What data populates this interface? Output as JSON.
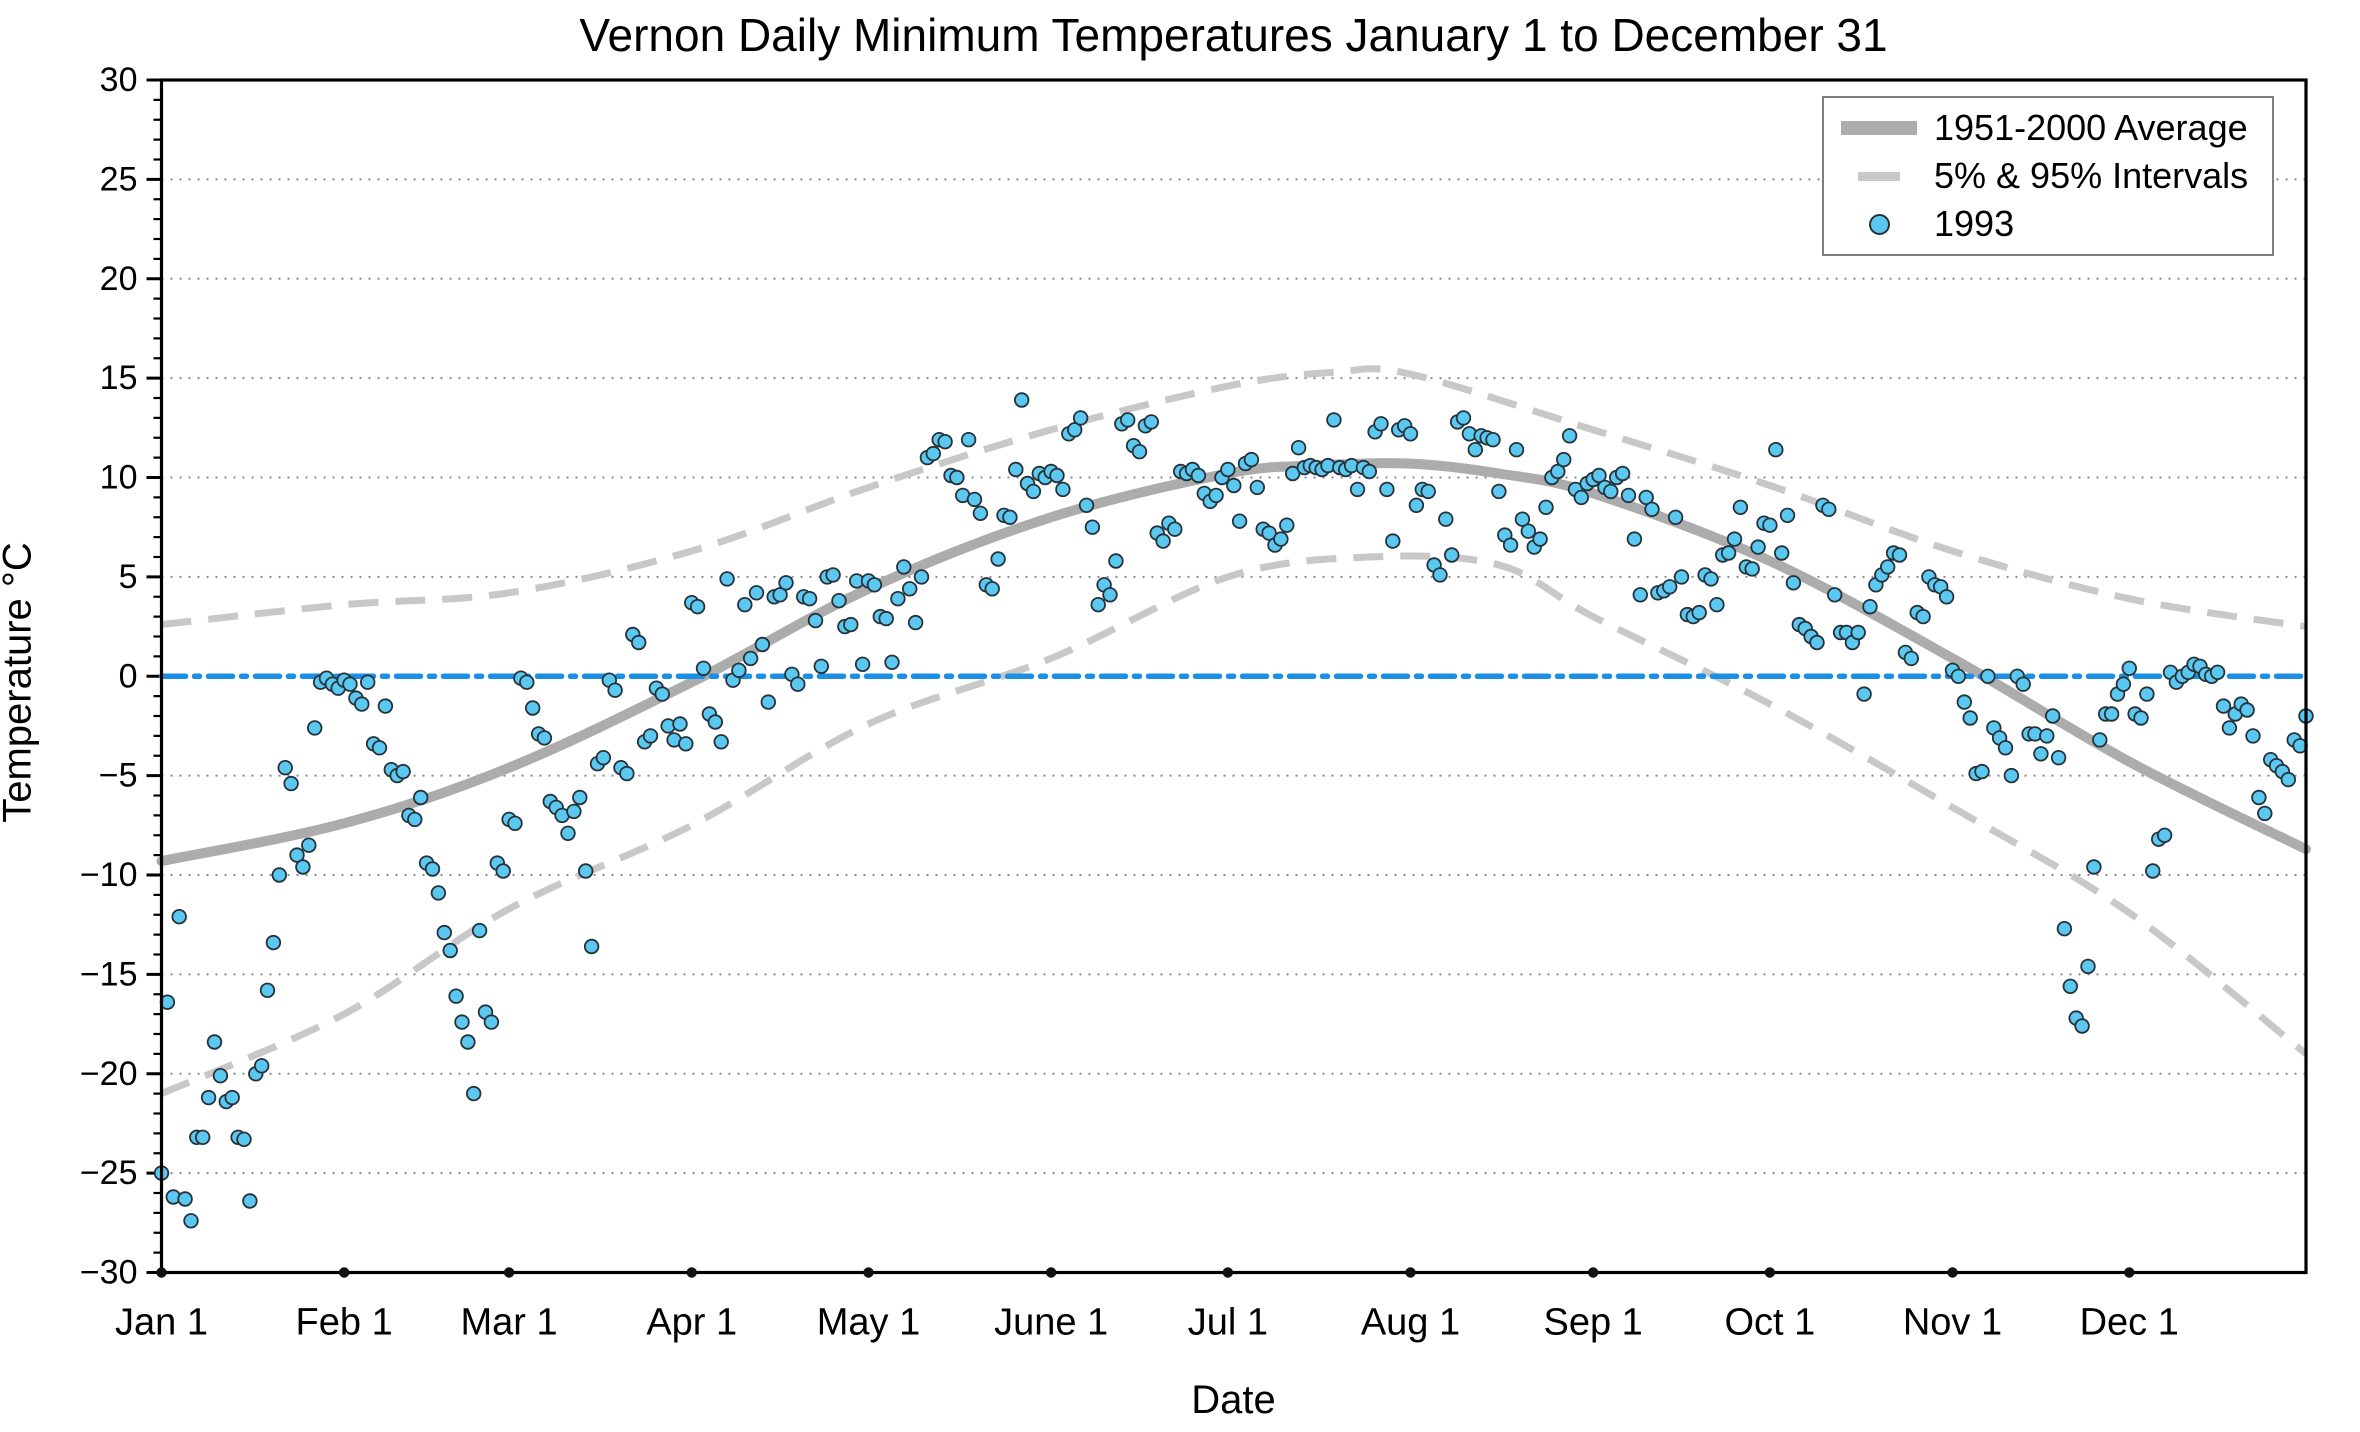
{
  "figure": {
    "title": "Vernon Daily Minimum Temperatures January 1 to December 31",
    "xlabel": "Date",
    "ylabel": "Temperature °C"
  },
  "legend": {
    "position": "upper right",
    "items": [
      {
        "label": "1951-2000 Average",
        "symbol": "thick-gray-line"
      },
      {
        "label": "5% & 95% Intervals",
        "symbol": "gray-dash"
      },
      {
        "label": "1993",
        "symbol": "blue-circle-marker"
      }
    ]
  },
  "chart_data": {
    "type": "scatter",
    "title": "Vernon Daily Minimum Temperatures January 1 to December 31",
    "xlabel": "Date",
    "ylabel": "Temperature °C",
    "ylim": [
      -30,
      30
    ],
    "ytick_step": 5,
    "ytick_labels": [
      "30",
      "25",
      "20",
      "15",
      "10",
      "5",
      "0",
      "−5",
      "−10",
      "−15",
      "−20",
      "−25",
      "−30"
    ],
    "grid": "dotted horizontal lines every 5°C",
    "legend_position": "upper right",
    "days_in_year": 365,
    "xticks": [
      {
        "label": "Jan 1",
        "day": 0
      },
      {
        "label": "Feb 1",
        "day": 31
      },
      {
        "label": "Mar 1",
        "day": 59
      },
      {
        "label": "Apr 1",
        "day": 90
      },
      {
        "label": "May 1",
        "day": 120
      },
      {
        "label": "June 1",
        "day": 151
      },
      {
        "label": "Jul 1",
        "day": 181
      },
      {
        "label": "Aug 1",
        "day": 212
      },
      {
        "label": "Sep 1",
        "day": 243
      },
      {
        "label": "Oct 1",
        "day": 273
      },
      {
        "label": "Nov 1",
        "day": 304
      },
      {
        "label": "Dec 1",
        "day": 334
      }
    ],
    "reference_line": {
      "name": "0 °C freezing line",
      "value": 0,
      "style": "dash-dot",
      "color": "#1b8fe4"
    },
    "colors": {
      "average_line": "#acacac",
      "interval_line": "#c8c8c8",
      "marker_fill": "#5bc8f2",
      "marker_edge": "#263238",
      "reference_line": "#1b8fe4",
      "grid_dots": "#8a8a8a",
      "frame": "#000000"
    },
    "series": [
      {
        "name": "1951-2000 Average",
        "type": "line",
        "style": "thick solid gray",
        "points": [
          [
            0,
            -9.3
          ],
          [
            31,
            -7.4
          ],
          [
            59,
            -4.6
          ],
          [
            90,
            -0.3
          ],
          [
            120,
            4.4
          ],
          [
            151,
            8.0
          ],
          [
            181,
            10.2
          ],
          [
            196,
            10.6
          ],
          [
            212,
            10.7
          ],
          [
            227,
            10.2
          ],
          [
            243,
            9.2
          ],
          [
            273,
            5.8
          ],
          [
            304,
            0.9
          ],
          [
            334,
            -4.3
          ],
          [
            364,
            -8.7
          ]
        ]
      },
      {
        "name": "95% Interval",
        "type": "line",
        "style": "dashed gray",
        "points": [
          [
            0,
            2.6
          ],
          [
            31,
            3.6
          ],
          [
            59,
            4.2
          ],
          [
            90,
            6.3
          ],
          [
            120,
            9.5
          ],
          [
            151,
            12.4
          ],
          [
            181,
            14.6
          ],
          [
            199,
            15.3
          ],
          [
            212,
            15.2
          ],
          [
            243,
            12.4
          ],
          [
            273,
            9.6
          ],
          [
            304,
            6.3
          ],
          [
            334,
            3.9
          ],
          [
            364,
            2.5
          ]
        ]
      },
      {
        "name": "5% Interval",
        "type": "line",
        "style": "dashed gray",
        "points": [
          [
            0,
            -21.0
          ],
          [
            31,
            -17.0
          ],
          [
            59,
            -11.7
          ],
          [
            90,
            -7.5
          ],
          [
            120,
            -2.4
          ],
          [
            151,
            0.9
          ],
          [
            181,
            5.0
          ],
          [
            205,
            6.0
          ],
          [
            227,
            5.6
          ],
          [
            243,
            3.0
          ],
          [
            273,
            -1.4
          ],
          [
            304,
            -6.6
          ],
          [
            334,
            -11.9
          ],
          [
            364,
            -19.0
          ]
        ]
      },
      {
        "name": "1993",
        "type": "scatter",
        "month_start_days": [
          0,
          31,
          59,
          90,
          120,
          151,
          181,
          212,
          243,
          273,
          304,
          334
        ],
        "monthly_values": {
          "Jan": [
            -25.0,
            -16.4,
            -26.2,
            -12.1,
            -26.3,
            -27.4,
            -23.2,
            -23.2,
            -21.2,
            -18.4,
            -20.1,
            -21.4,
            -21.2,
            -23.2,
            -23.3,
            -26.4,
            -20.0,
            -19.6,
            -15.8,
            -13.4,
            -10.0,
            -4.6,
            -5.4,
            -9.0,
            -9.6,
            -8.5,
            -2.6,
            -0.3,
            -0.1,
            -0.4,
            -0.6
          ],
          "Feb": [
            -0.2,
            -0.4,
            -1.1,
            -1.4,
            -0.3,
            -3.4,
            -3.6,
            -1.5,
            -4.7,
            -5.0,
            -4.8,
            -7.0,
            -7.2,
            -6.1,
            -9.4,
            -9.7,
            -10.9,
            -12.9,
            -13.8,
            -16.1,
            -17.4,
            -18.4,
            -21.0,
            -12.8,
            -16.9,
            -17.4,
            -9.4,
            -9.8
          ],
          "Mar": [
            -7.2,
            -7.4,
            -0.1,
            -0.3,
            -1.6,
            -2.9,
            -3.1,
            -6.3,
            -6.6,
            -7.0,
            -7.9,
            -6.8,
            -6.1,
            -9.8,
            -13.6,
            -4.4,
            -4.1,
            -0.2,
            -0.7,
            -4.6,
            -4.9,
            2.1,
            1.7,
            -3.3,
            -3.0,
            -0.6,
            -0.9,
            -2.5,
            -3.2,
            -2.4,
            -3.4
          ],
          "Apr": [
            3.7,
            3.5,
            0.4,
            -1.9,
            -2.3,
            -3.3,
            4.9,
            -0.2,
            0.3,
            3.6,
            0.9,
            4.2,
            1.6,
            -1.3,
            4.0,
            4.1,
            4.7,
            0.1,
            -0.4,
            4.0,
            3.9,
            2.8,
            0.5,
            5.0,
            5.1,
            3.8,
            2.5,
            2.6,
            4.8,
            0.6
          ],
          "May": [
            4.8,
            4.6,
            3.0,
            2.9,
            0.7,
            3.9,
            5.5,
            4.4,
            2.7,
            5.0,
            11.0,
            11.2,
            11.9,
            11.8,
            10.1,
            10.0,
            9.1,
            11.9,
            8.9,
            8.2,
            4.6,
            4.4,
            5.9,
            8.1,
            8.0,
            10.4,
            13.9,
            9.7,
            9.3,
            10.2,
            10.0
          ],
          "Jun": [
            10.3,
            10.1,
            9.4,
            12.2,
            12.4,
            13.0,
            8.6,
            7.5,
            3.6,
            4.6,
            4.1,
            5.8,
            12.7,
            12.9,
            11.6,
            11.3,
            12.6,
            12.8,
            7.2,
            6.8,
            7.7,
            7.4,
            10.3,
            10.2,
            10.4,
            10.1,
            9.2,
            8.8,
            9.1,
            10.0
          ],
          "Jul": [
            10.4,
            9.6,
            7.8,
            10.7,
            10.9,
            9.5,
            7.4,
            7.2,
            6.6,
            6.9,
            7.6,
            10.2,
            11.5,
            10.5,
            10.6,
            10.5,
            10.4,
            10.6,
            12.9,
            10.5,
            10.4,
            10.6,
            9.4,
            10.5,
            10.3,
            12.3,
            12.7,
            9.4,
            6.8,
            12.4,
            12.6
          ],
          "Aug": [
            12.2,
            8.6,
            9.4,
            9.3,
            5.6,
            5.1,
            7.9,
            6.1,
            12.8,
            13.0,
            12.2,
            11.4,
            12.1,
            12.0,
            11.9,
            9.3,
            7.1,
            6.6,
            11.4,
            7.9,
            7.3,
            6.5,
            6.9,
            8.5,
            10.0,
            10.3,
            10.9,
            12.1,
            9.4,
            9.0,
            9.7
          ],
          "Sep": [
            9.9,
            10.1,
            9.5,
            9.3,
            10.0,
            10.2,
            9.1,
            6.9,
            4.1,
            9.0,
            8.4,
            4.2,
            4.3,
            4.5,
            8.0,
            5.0,
            3.1,
            3.0,
            3.2,
            5.1,
            4.9,
            3.6,
            6.1,
            6.2,
            6.9,
            8.5,
            5.5,
            5.4,
            6.5,
            7.7
          ],
          "Oct": [
            7.6,
            11.4,
            6.2,
            8.1,
            4.7,
            2.6,
            2.4,
            2.0,
            1.7,
            8.6,
            8.4,
            4.1,
            2.2,
            2.2,
            1.7,
            2.2,
            -0.9,
            3.5,
            4.6,
            5.1,
            5.5,
            6.2,
            6.1,
            1.2,
            0.9,
            3.2,
            3.0,
            5.0,
            4.6,
            4.5,
            4.0
          ],
          "Nov": [
            0.3,
            0.0,
            -1.3,
            -2.1,
            -4.9,
            -4.8,
            0.0,
            -2.6,
            -3.1,
            -3.6,
            -5.0,
            0.0,
            -0.4,
            -2.9,
            -2.9,
            -3.9,
            -3.0,
            -2.0,
            -4.1,
            -12.7,
            -15.6,
            -17.2,
            -17.6,
            -14.6,
            -9.6,
            -3.2,
            -1.9,
            -1.9,
            -0.9,
            -0.4
          ],
          "Dec": [
            0.4,
            -1.9,
            -2.1,
            -0.9,
            -9.8,
            -8.2,
            -8.0,
            0.2,
            -0.3,
            0.0,
            0.2,
            0.6,
            0.5,
            0.1,
            0.0,
            0.2,
            -1.5,
            -2.6,
            -1.9,
            -1.4,
            -1.7,
            -3.0,
            -6.1,
            -6.9,
            -4.2,
            -4.5,
            -4.8,
            -5.2,
            -3.2,
            -3.5,
            -2.0
          ]
        }
      }
    ]
  }
}
